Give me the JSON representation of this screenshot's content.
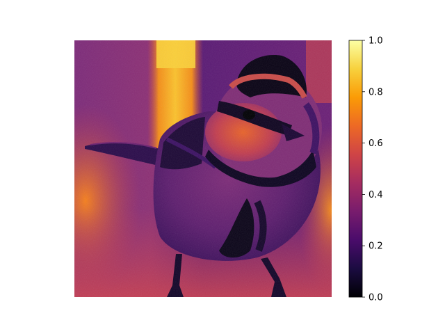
{
  "image": {
    "subject": "bird",
    "colormap": "inferno"
  },
  "colorbar": {
    "min": 0.0,
    "max": 1.0,
    "ticks": [
      {
        "value": 0.0,
        "label": "0.0"
      },
      {
        "value": 0.2,
        "label": "0.2"
      },
      {
        "value": 0.4,
        "label": "0.4"
      },
      {
        "value": 0.6,
        "label": "0.6"
      },
      {
        "value": 0.8,
        "label": "0.8"
      },
      {
        "value": 1.0,
        "label": "1.0"
      }
    ],
    "stops": [
      "#000004",
      "#1b0c41",
      "#4a0c6b",
      "#781c6d",
      "#a52c60",
      "#cf4446",
      "#ed6925",
      "#fb9b06",
      "#f7d13d",
      "#fcffa4"
    ]
  }
}
